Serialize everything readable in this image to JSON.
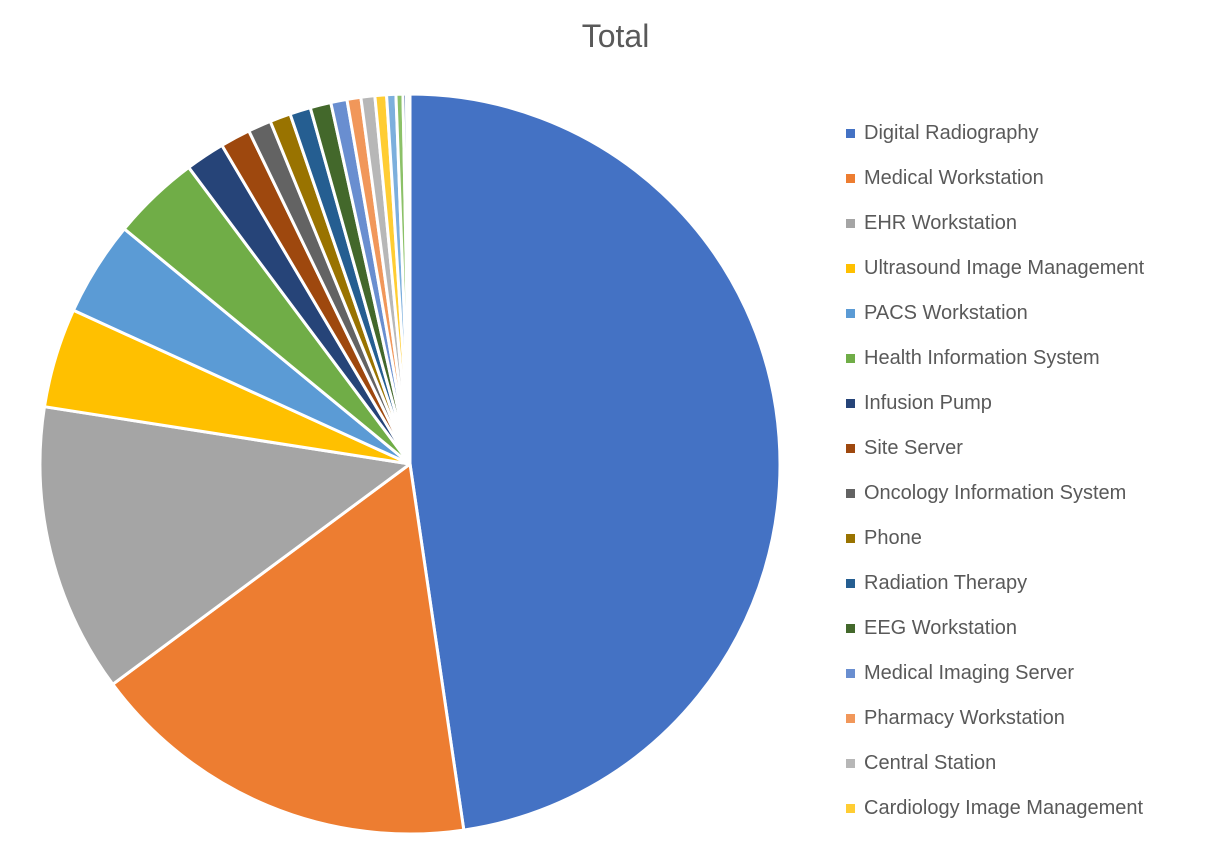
{
  "chart_data": {
    "type": "pie",
    "title": "Total",
    "start_angle_deg": 0,
    "direction": "clockwise",
    "legend_position": "right",
    "slices": [
      {
        "label": "Digital Radiography",
        "value": 47.2,
        "color": "#4472C4"
      },
      {
        "label": "Medical Workstation",
        "value": 17.0,
        "color": "#ED7D31"
      },
      {
        "label": "EHR Workstation",
        "value": 12.5,
        "color": "#A5A5A5"
      },
      {
        "label": "Ultrasound Image Management",
        "value": 4.3,
        "color": "#FFC000"
      },
      {
        "label": "PACS Workstation",
        "value": 4.1,
        "color": "#5B9BD5"
      },
      {
        "label": "Health Information System",
        "value": 3.8,
        "color": "#70AD47"
      },
      {
        "label": "Infusion Pump",
        "value": 1.7,
        "color": "#264478"
      },
      {
        "label": "Site Server",
        "value": 1.3,
        "color": "#9E480E"
      },
      {
        "label": "Oncology Information System",
        "value": 1.0,
        "color": "#636363"
      },
      {
        "label": "Phone",
        "value": 0.9,
        "color": "#997300"
      },
      {
        "label": "Radiation Therapy",
        "value": 0.9,
        "color": "#255E91"
      },
      {
        "label": "EEG Workstation",
        "value": 0.9,
        "color": "#43682B"
      },
      {
        "label": "Medical Imaging Server",
        "value": 0.7,
        "color": "#698ED0"
      },
      {
        "label": "Pharmacy Workstation",
        "value": 0.6,
        "color": "#F1975A"
      },
      {
        "label": "Central Station",
        "value": 0.6,
        "color": "#B7B7B7"
      },
      {
        "label": "Cardiology Image Management",
        "value": 0.5,
        "color": "#FFCD33"
      },
      {
        "label": "",
        "value": 0.4,
        "color": "#7CAFDD"
      },
      {
        "label": "",
        "value": 0.3,
        "color": "#8CC168"
      },
      {
        "label": "",
        "value": 0.15,
        "color": "#3A5E9C"
      },
      {
        "label": "",
        "value": 0.1,
        "color": "#B9583B"
      },
      {
        "label": "",
        "value": 0.05,
        "color": "#7F7F7F"
      }
    ]
  }
}
